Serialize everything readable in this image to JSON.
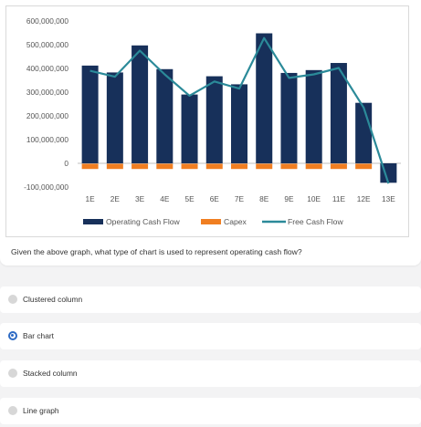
{
  "question": "Given the above graph, what type of chart is used to represent operating cash flow?",
  "options": [
    {
      "label": "Clustered column",
      "selected": false
    },
    {
      "label": "Bar chart",
      "selected": true
    },
    {
      "label": "Stacked column",
      "selected": false
    },
    {
      "label": "Line graph",
      "selected": false
    }
  ],
  "colors": {
    "operating": "#17305a",
    "capex": "#f07e21",
    "fcf": "#2b8a99",
    "accent": "#2d6ac4"
  },
  "chart_data": {
    "type": "bar",
    "categories": [
      "1E",
      "2E",
      "3E",
      "4E",
      "5E",
      "6E",
      "7E",
      "8E",
      "9E",
      "10E",
      "11E",
      "12E",
      "13E"
    ],
    "ylim": [
      -100000000,
      600000000
    ],
    "yticks": [
      "600,000,000",
      "500,000,000",
      "400,000,000",
      "300,000,000",
      "200,000,000",
      "100,000,000",
      "0",
      "-100,000,000"
    ],
    "ytick_values": [
      600000000,
      500000000,
      400000000,
      300000000,
      200000000,
      100000000,
      0,
      -100000000
    ],
    "grid": false,
    "legend_position": "bottom",
    "series": [
      {
        "name": "Operating Cash Flow",
        "type": "bar",
        "values": [
          412000000,
          383000000,
          497000000,
          397000000,
          290000000,
          367000000,
          333000000,
          548000000,
          381000000,
          393000000,
          423000000,
          255000000,
          -82000000
        ]
      },
      {
        "name": "Capex",
        "type": "bar",
        "values": [
          -22000000,
          -22000000,
          -22000000,
          -22000000,
          -22000000,
          -22000000,
          -22000000,
          -22000000,
          -22000000,
          -22000000,
          -22000000,
          -22000000,
          0
        ]
      },
      {
        "name": "Free Cash Flow",
        "type": "line",
        "values": [
          390000000,
          365000000,
          475000000,
          375000000,
          285000000,
          345000000,
          315000000,
          528000000,
          360000000,
          375000000,
          402000000,
          235000000,
          -85000000
        ]
      }
    ]
  }
}
